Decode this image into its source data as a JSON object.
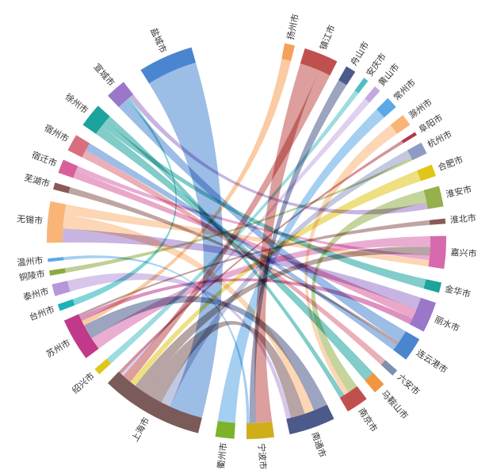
{
  "chart_data": {
    "type": "chord",
    "title": "",
    "groups": [
      {
        "name": "扬州市",
        "start": 11.0,
        "end": 14.0,
        "color": "#F5A15A"
      },
      {
        "name": "镇江市",
        "start": 17.0,
        "end": 27.0,
        "color": "#C0504D"
      },
      {
        "name": "舟山市",
        "start": 30.0,
        "end": 33.0,
        "color": "#4B5A8A"
      },
      {
        "name": "安庆市",
        "start": 36.0,
        "end": 37.5,
        "color": "#4DBFC4"
      },
      {
        "name": "黄山市",
        "start": 40.0,
        "end": 42.0,
        "color": "#C3A9E0"
      },
      {
        "name": "常州市",
        "start": 45.0,
        "end": 48.5,
        "color": "#5BA8E6"
      },
      {
        "name": "滁州市",
        "start": 51.5,
        "end": 55.0,
        "color": "#F9B578"
      },
      {
        "name": "阜阳市",
        "start": 57.5,
        "end": 58.5,
        "color": "#B03A48"
      },
      {
        "name": "杭州市",
        "start": 61.0,
        "end": 64.5,
        "color": "#8E9BC5"
      },
      {
        "name": "合肥市",
        "start": 68.0,
        "end": 71.5,
        "color": "#E0C51A"
      },
      {
        "name": "淮安市",
        "start": 74.5,
        "end": 80.5,
        "color": "#95B04C"
      },
      {
        "name": "淮北市",
        "start": 84.0,
        "end": 85.5,
        "color": "#8A5A55"
      },
      {
        "name": "嘉兴市",
        "start": 89.0,
        "end": 98.5,
        "color": "#D76AAD"
      },
      {
        "name": "金华市",
        "start": 102.5,
        "end": 105.5,
        "color": "#1BA39C"
      },
      {
        "name": "丽水市",
        "start": 108.5,
        "end": 117.5,
        "color": "#9A77C9"
      },
      {
        "name": "连云港市",
        "start": 120.0,
        "end": 127.0,
        "color": "#4A86D0"
      },
      {
        "name": "六安市",
        "start": 131.0,
        "end": 133.0,
        "color": "#7F8FAF"
      },
      {
        "name": "马鞍山市",
        "start": 136.5,
        "end": 140.0,
        "color": "#F29541"
      },
      {
        "name": "南京市",
        "start": 143.0,
        "end": 149.5,
        "color": "#C0504D"
      },
      {
        "name": "南通市",
        "start": 154.0,
        "end": 167.5,
        "color": "#4B5A8A"
      },
      {
        "name": "宁波市",
        "start": 172.0,
        "end": 180.0,
        "color": "#CFAE1A"
      },
      {
        "name": "衢州市",
        "start": 183.5,
        "end": 189.0,
        "color": "#7CB32A"
      },
      {
        "name": "上海市",
        "start": 194.0,
        "end": 224.0,
        "color": "#7B5A5A"
      },
      {
        "name": "绍兴市",
        "start": 227.5,
        "end": 229.5,
        "color": "#E0C51A"
      },
      {
        "name": "苏州市",
        "start": 233.5,
        "end": 246.0,
        "color": "#C0398A"
      },
      {
        "name": "台州市",
        "start": 249.0,
        "end": 251.0,
        "color": "#1BB1B8"
      },
      {
        "name": "泰州市",
        "start": 253.5,
        "end": 257.0,
        "color": "#B697D8"
      },
      {
        "name": "铜陵市",
        "start": 259.5,
        "end": 261.0,
        "color": "#8DAA3E"
      },
      {
        "name": "温州市",
        "start": 263.5,
        "end": 264.5,
        "color": "#5BA8E6"
      },
      {
        "name": "无锡市",
        "start": 269.0,
        "end": 281.0,
        "color": "#F9B578"
      },
      {
        "name": "芜湖市",
        "start": 284.5,
        "end": 286.5,
        "color": "#8A5A55"
      },
      {
        "name": "宿迁市",
        "start": 289.5,
        "end": 293.5,
        "color": "#D95F9A"
      },
      {
        "name": "宿州市",
        "start": 296.5,
        "end": 301.5,
        "color": "#D96E7E"
      },
      {
        "name": "徐州市",
        "start": 305.0,
        "end": 312.0,
        "color": "#1BA39C"
      },
      {
        "name": "宣城市",
        "start": 316.0,
        "end": 322.0,
        "color": "#9A77C9"
      },
      {
        "name": "盐城市",
        "start": 328.0,
        "end": 344.0,
        "color": "#4A86D0"
      }
    ],
    "links": [
      {
        "source": "盐城市",
        "target": "上海市",
        "value": 11
      },
      {
        "source": "镇江市",
        "target": "宁波市",
        "value": 5
      },
      {
        "source": "杭州市",
        "target": "上海市",
        "value": 3
      },
      {
        "source": "丽水市",
        "target": "无锡市",
        "value": 4
      },
      {
        "source": "连云港市",
        "target": "宣城市",
        "value": 4
      },
      {
        "source": "嘉兴市",
        "target": "苏州市",
        "value": 5
      },
      {
        "source": "淮安市",
        "target": "南京市",
        "value": 4
      },
      {
        "source": "南通市",
        "target": "苏州市",
        "value": 6
      },
      {
        "source": "无锡市",
        "target": "南通市",
        "value": 4
      },
      {
        "source": "上海市",
        "target": "南通市",
        "value": 6
      },
      {
        "source": "上海市",
        "target": "嘉兴市",
        "value": 4
      },
      {
        "source": "徐州市",
        "target": "马鞍山市",
        "value": 3
      },
      {
        "source": "宿迁市",
        "target": "丽水市",
        "value": 3
      },
      {
        "source": "宿州市",
        "target": "六安市",
        "value": 2
      },
      {
        "source": "常州市",
        "target": "衢州市",
        "value": 2
      },
      {
        "source": "滁州市",
        "target": "南京市",
        "value": 2
      },
      {
        "source": "合肥市",
        "target": "上海市",
        "value": 2
      },
      {
        "source": "镇江市",
        "target": "上海市",
        "value": 3
      },
      {
        "source": "扬州市",
        "target": "苏州市",
        "value": 2
      },
      {
        "source": "舟山市",
        "target": "宁波市",
        "value": 2
      },
      {
        "source": "黄山市",
        "target": "上海市",
        "value": 1
      },
      {
        "source": "安庆市",
        "target": "绍兴市",
        "value": 1
      },
      {
        "source": "金华市",
        "target": "徐州市",
        "value": 2
      },
      {
        "source": "嘉兴市",
        "target": "宿迁市",
        "value": 2
      },
      {
        "source": "苏州市",
        "target": "丽水市",
        "value": 2
      },
      {
        "source": "泰州市",
        "target": "南通市",
        "value": 2
      },
      {
        "source": "台州市",
        "target": "宣城市",
        "value": 1
      },
      {
        "source": "淮北市",
        "target": "苏州市",
        "value": 1
      },
      {
        "source": "阜阳市",
        "target": "上海市",
        "value": 1
      },
      {
        "source": "芜湖市",
        "target": "连云港市",
        "value": 1
      },
      {
        "source": "铜陵市",
        "target": "杭州市",
        "value": 1
      },
      {
        "source": "温州市",
        "target": "宁波市",
        "value": 1
      },
      {
        "source": "宣城市",
        "target": "淮安市",
        "value": 2
      },
      {
        "source": "徐州市",
        "target": "南京市",
        "value": 2
      },
      {
        "source": "连云港市",
        "target": "宿州市",
        "value": 2
      },
      {
        "source": "无锡市",
        "target": "嘉兴市",
        "value": 3
      }
    ]
  }
}
